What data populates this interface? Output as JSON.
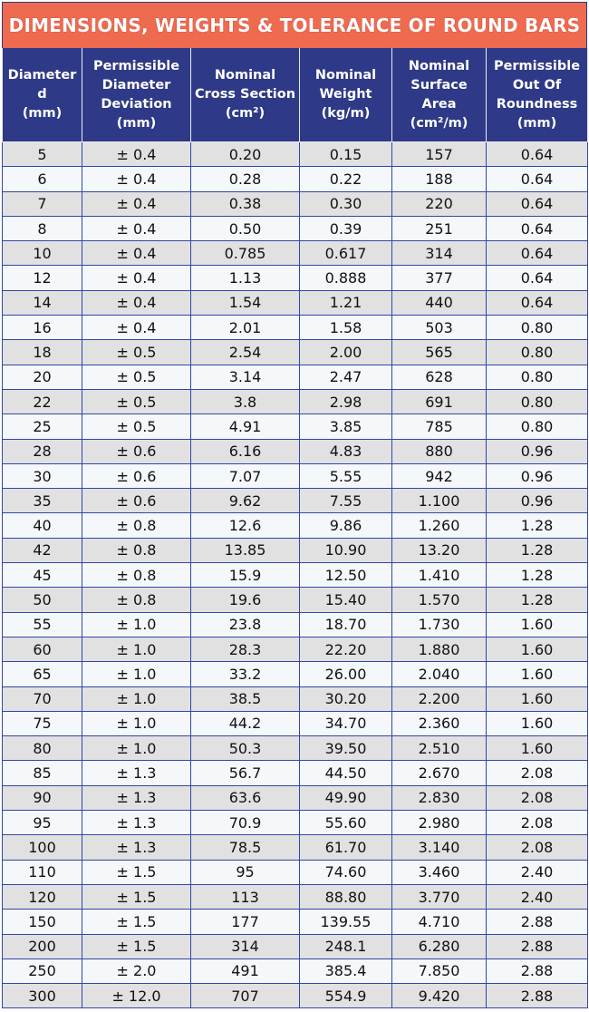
{
  "title": "DIMENSIONS, WEIGHTS & TOLERANCE OF ROUND BARS",
  "colors": {
    "title_bg": "#ee6b4f",
    "header_bg": "#2e3a87",
    "row_alt": "#e1e1e1",
    "row": "#f4f8fa"
  },
  "headers": [
    "Diameter\nd\n(mm)",
    "Permissible\nDiameter\nDeviation\n(mm)",
    "Nominal\nCross Section\n(cm²)",
    "Nominal\nWeight\n(kg/m)",
    "Nominal\nSurface\nArea\n(cm²/m)",
    "Permissible\nOut Of\nRoundness\n(mm)"
  ],
  "rows": [
    [
      "5",
      "± 0.4",
      "0.20",
      "0.15",
      "157",
      "0.64"
    ],
    [
      "6",
      "± 0.4",
      "0.28",
      "0.22",
      "188",
      "0.64"
    ],
    [
      "7",
      "± 0.4",
      "0.38",
      "0.30",
      "220",
      "0.64"
    ],
    [
      "8",
      "± 0.4",
      "0.50",
      "0.39",
      "251",
      "0.64"
    ],
    [
      "10",
      "± 0.4",
      "0.785",
      "0.617",
      "314",
      "0.64"
    ],
    [
      "12",
      "± 0.4",
      "1.13",
      "0.888",
      "377",
      "0.64"
    ],
    [
      "14",
      "± 0.4",
      "1.54",
      "1.21",
      "440",
      "0.64"
    ],
    [
      "16",
      "± 0.4",
      "2.01",
      "1.58",
      "503",
      "0.80"
    ],
    [
      "18",
      "± 0.5",
      "2.54",
      "2.00",
      "565",
      "0.80"
    ],
    [
      "20",
      "± 0.5",
      "3.14",
      "2.47",
      "628",
      "0.80"
    ],
    [
      "22",
      "± 0.5",
      "3.8",
      "2.98",
      "691",
      "0.80"
    ],
    [
      "25",
      "± 0.5",
      "4.91",
      "3.85",
      "785",
      "0.80"
    ],
    [
      "28",
      "± 0.6",
      "6.16",
      "4.83",
      "880",
      "0.96"
    ],
    [
      "30",
      "± 0.6",
      "7.07",
      "5.55",
      "942",
      "0.96"
    ],
    [
      "35",
      "± 0.6",
      "9.62",
      "7.55",
      "1.100",
      "0.96"
    ],
    [
      "40",
      "± 0.8",
      "12.6",
      "9.86",
      "1.260",
      "1.28"
    ],
    [
      "42",
      "± 0.8",
      "13.85",
      "10.90",
      "13.20",
      "1.28"
    ],
    [
      "45",
      "± 0.8",
      "15.9",
      "12.50",
      "1.410",
      "1.28"
    ],
    [
      "50",
      "± 0.8",
      "19.6",
      "15.40",
      "1.570",
      "1.28"
    ],
    [
      "55",
      "± 1.0",
      "23.8",
      "18.70",
      "1.730",
      "1.60"
    ],
    [
      "60",
      "± 1.0",
      "28.3",
      "22.20",
      "1.880",
      "1.60"
    ],
    [
      "65",
      "± 1.0",
      "33.2",
      "26.00",
      "2.040",
      "1.60"
    ],
    [
      "70",
      "± 1.0",
      "38.5",
      "30.20",
      "2.200",
      "1.60"
    ],
    [
      "75",
      "± 1.0",
      "44.2",
      "34.70",
      "2.360",
      "1.60"
    ],
    [
      "80",
      "± 1.0",
      "50.3",
      "39.50",
      "2.510",
      "1.60"
    ],
    [
      "85",
      "± 1.3",
      "56.7",
      "44.50",
      "2.670",
      "2.08"
    ],
    [
      "90",
      "± 1.3",
      "63.6",
      "49.90",
      "2.830",
      "2.08"
    ],
    [
      "95",
      "± 1.3",
      "70.9",
      "55.60",
      "2.980",
      "2.08"
    ],
    [
      "100",
      "± 1.3",
      "78.5",
      "61.70",
      "3.140",
      "2.08"
    ],
    [
      "110",
      "± 1.5",
      "95",
      "74.60",
      "3.460",
      "2.40"
    ],
    [
      "120",
      "± 1.5",
      "113",
      "88.80",
      "3.770",
      "2.40"
    ],
    [
      "150",
      "± 1.5",
      "177",
      "139.55",
      "4.710",
      "2.88"
    ],
    [
      "200",
      "± 1.5",
      "314",
      "248.1",
      "6.280",
      "2.88"
    ],
    [
      "250",
      "± 2.0",
      "491",
      "385.4",
      "7.850",
      "2.88"
    ],
    [
      "300",
      "± 12.0",
      "707",
      "554.9",
      "9.420",
      "2.88"
    ]
  ]
}
